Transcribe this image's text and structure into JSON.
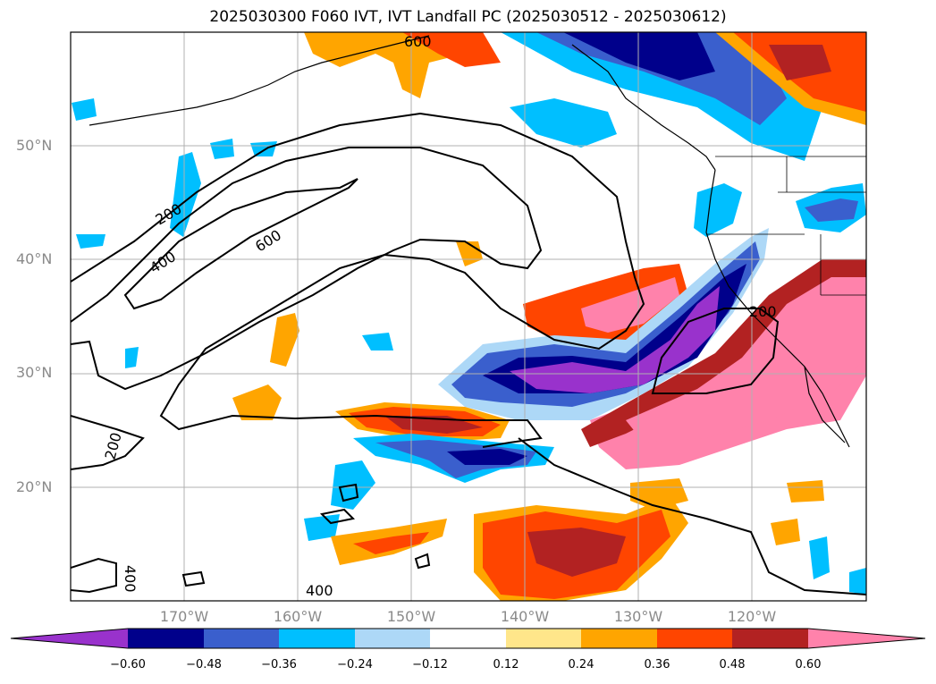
{
  "title": "2025030300 F060 IVT, IVT Landfall PC (2025030512 - 2025030612)",
  "latitude_labels": [
    "50°N",
    "40°N",
    "30°N",
    "20°N"
  ],
  "longitude_labels": [
    "170°W",
    "160°W",
    "150°W",
    "140°W",
    "130°W",
    "120°W"
  ],
  "contour_labels": [
    "200",
    "400",
    "600",
    "200",
    "200",
    "400",
    "400",
    "600"
  ],
  "colorbar": {
    "ticks": [
      "−0.60",
      "−0.48",
      "−0.36",
      "−0.24",
      "−0.12",
      "0.12",
      "0.24",
      "0.36",
      "0.48",
      "0.60"
    ],
    "colors": [
      "#9932cc",
      "#00008b",
      "#3a5fcd",
      "#00bfff",
      "#add8f7",
      "#ffffff",
      "#ffe68a",
      "#ffa500",
      "#ff4500",
      "#b22222",
      "#ff82ab"
    ]
  },
  "map_colors": {
    "purple": "#9932cc",
    "navy": "#00008b",
    "blue": "#3a5fcd",
    "sky": "#00bfff",
    "light_blue": "#add8f7",
    "yellow": "#ffe68a",
    "orange": "#ffa500",
    "orange_red": "#ff4500",
    "dark_red": "#b22222",
    "pink": "#ff82ab"
  }
}
